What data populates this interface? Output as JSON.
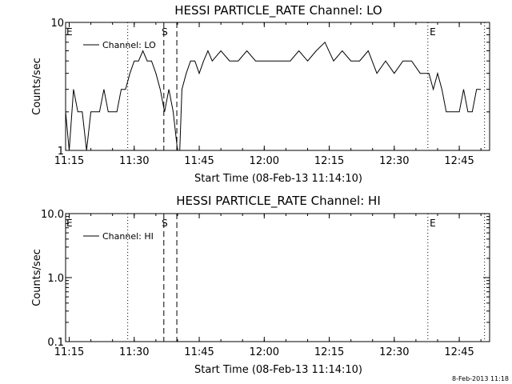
{
  "chart_data": [
    {
      "type": "line",
      "title": "HESSI PARTICLE_RATE Channel: LO",
      "xlabel": "Start Time (08-Feb-13 11:14:10)",
      "ylabel": "Counts/sec",
      "yscale": "log",
      "ylim": [
        1,
        10
      ],
      "yticks": [
        "1",
        "10"
      ],
      "xlim": [
        "11:14:10",
        "12:52:00"
      ],
      "xticks": [
        "11:15",
        "11:30",
        "11:45",
        "12:00",
        "12:15",
        "12:30",
        "12:45"
      ],
      "legend_placement": "top-left",
      "grid": false,
      "markers": [
        {
          "label": "E",
          "time": "11:14:10"
        },
        {
          "label": "S",
          "time": "11:36:10"
        },
        {
          "label": "E",
          "time": "12:38:00"
        }
      ],
      "dotted_lines": [
        "11:28:30",
        "12:37:45",
        "12:50:50"
      ],
      "dashed_lines": [
        "11:36:50",
        "11:39:50"
      ],
      "series": [
        {
          "name": "Channel: LO",
          "x": [
            "11:14:10",
            "11:15:00",
            "11:16:00",
            "11:17:00",
            "11:18:00",
            "11:19:00",
            "11:20:00",
            "11:21:00",
            "11:22:00",
            "11:23:00",
            "11:24:00",
            "11:25:00",
            "11:26:00",
            "11:27:00",
            "11:28:00",
            "11:29:00",
            "11:30:00",
            "11:31:00",
            "11:32:00",
            "11:33:00",
            "11:34:00",
            "11:35:00",
            "11:36:00",
            "11:37:00",
            "11:38:00",
            "11:39:00",
            "11:40:00",
            "11:40:30",
            "11:41:00",
            "11:42:00",
            "11:43:00",
            "11:44:00",
            "11:45:00",
            "11:46:00",
            "11:47:00",
            "11:48:00",
            "11:50:00",
            "11:52:00",
            "11:54:00",
            "11:56:00",
            "11:58:00",
            "12:00:00",
            "12:02:00",
            "12:04:00",
            "12:06:00",
            "12:08:00",
            "12:10:00",
            "12:12:00",
            "12:14:00",
            "12:16:00",
            "12:18:00",
            "12:20:00",
            "12:22:00",
            "12:24:00",
            "12:26:00",
            "12:28:00",
            "12:30:00",
            "12:32:00",
            "12:34:00",
            "12:36:00",
            "12:38:00",
            "12:39:00",
            "12:40:00",
            "12:41:00",
            "12:42:00",
            "12:43:00",
            "12:44:00",
            "12:45:00",
            "12:46:00",
            "12:47:00",
            "12:48:00",
            "12:49:00",
            "12:50:00"
          ],
          "y": [
            2,
            1,
            3,
            2,
            2,
            1,
            2,
            2,
            2,
            3,
            2,
            2,
            2,
            3,
            3,
            4,
            5,
            5,
            6,
            5,
            5,
            4,
            3,
            2,
            3,
            2,
            1,
            1,
            3,
            4,
            5,
            5,
            4,
            5,
            6,
            5,
            6,
            5,
            5,
            6,
            5,
            5,
            5,
            5,
            5,
            6,
            5,
            6,
            7,
            5,
            6,
            5,
            5,
            6,
            4,
            5,
            4,
            5,
            5,
            4,
            4,
            3,
            4,
            3,
            2,
            2,
            2,
            2,
            3,
            2,
            2,
            3,
            3
          ]
        }
      ]
    },
    {
      "type": "line",
      "title": "HESSI PARTICLE_RATE Channel: HI",
      "xlabel": "Start Time (08-Feb-13 11:14:10)",
      "ylabel": "Counts/sec",
      "yscale": "log",
      "ylim": [
        0.1,
        10
      ],
      "yticks": [
        "0.1",
        "1.0",
        "10.0"
      ],
      "xlim": [
        "11:14:10",
        "12:52:00"
      ],
      "xticks": [
        "11:15",
        "11:30",
        "11:45",
        "12:00",
        "12:15",
        "12:30",
        "12:45"
      ],
      "legend_placement": "top-left",
      "grid": false,
      "markers": [
        {
          "label": "E",
          "time": "11:14:10"
        },
        {
          "label": "S",
          "time": "11:36:10"
        },
        {
          "label": "E",
          "time": "12:38:00"
        }
      ],
      "dotted_lines": [
        "11:28:30",
        "12:37:45",
        "12:50:50"
      ],
      "dashed_lines": [
        "11:36:50",
        "11:39:50"
      ],
      "series": [
        {
          "name": "Channel: HI",
          "x": [],
          "y": []
        }
      ]
    }
  ],
  "footer": {
    "timestamp": "8-Feb-2013 11:18"
  }
}
